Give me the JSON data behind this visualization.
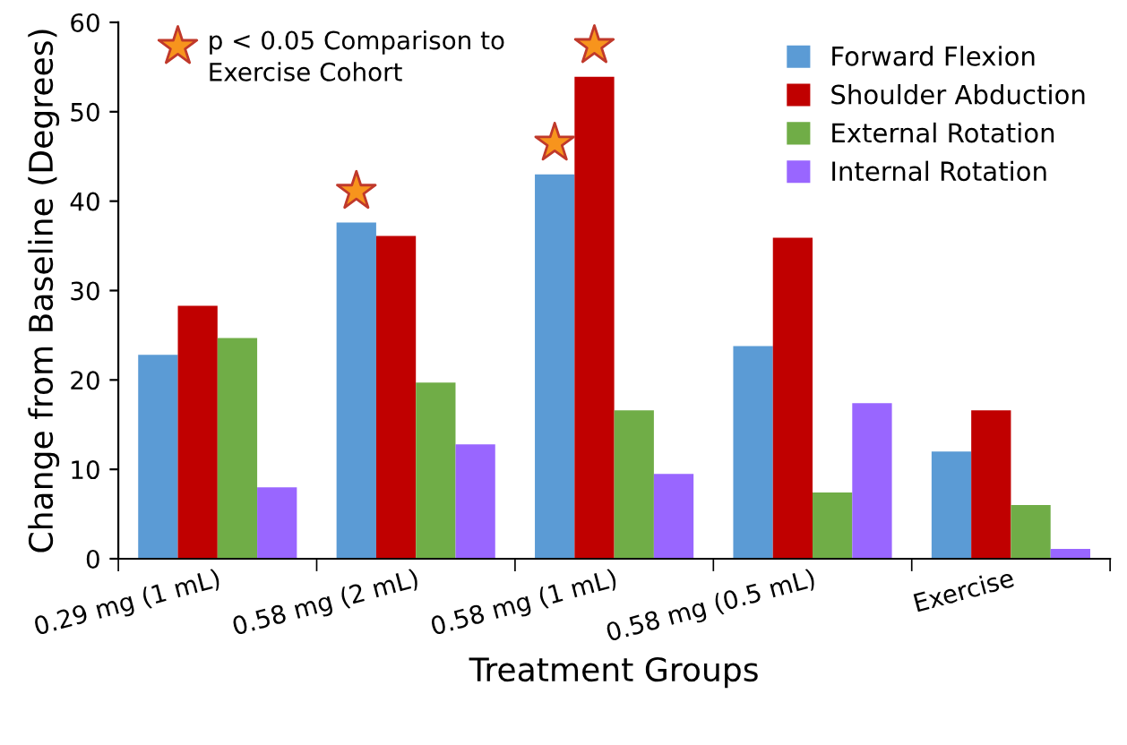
{
  "chart_data": {
    "type": "bar",
    "xlabel": "Treatment Groups",
    "ylabel": "Change from Baseline (Degrees)",
    "categories": [
      "0.29 mg (1 mL)",
      "0.58 mg (2 mL)",
      "0.58 mg (1 mL)",
      "0.58 mg (0.5 mL)",
      "Exercise"
    ],
    "series": [
      {
        "name": "Forward Flexion",
        "color": "#5b9bd5",
        "values": [
          22.8,
          37.6,
          43.0,
          23.8,
          12.0
        ]
      },
      {
        "name": "Shoulder Abduction",
        "color": "#c00000",
        "values": [
          28.3,
          36.1,
          53.9,
          35.9,
          16.6
        ]
      },
      {
        "name": "External Rotation",
        "color": "#70ad47",
        "values": [
          24.7,
          19.7,
          16.6,
          7.4,
          6.0
        ]
      },
      {
        "name": "Internal Rotation",
        "color": "#9966ff",
        "values": [
          8.0,
          12.8,
          9.5,
          17.4,
          1.1
        ]
      }
    ],
    "ylim": [
      0,
      60
    ],
    "yticks": [
      0,
      10,
      20,
      30,
      40,
      50,
      60
    ],
    "grid": false,
    "legend": "top right",
    "annotations": [
      "p < 0.05 Comparison to\nExercise Cohort"
    ]
  }
}
